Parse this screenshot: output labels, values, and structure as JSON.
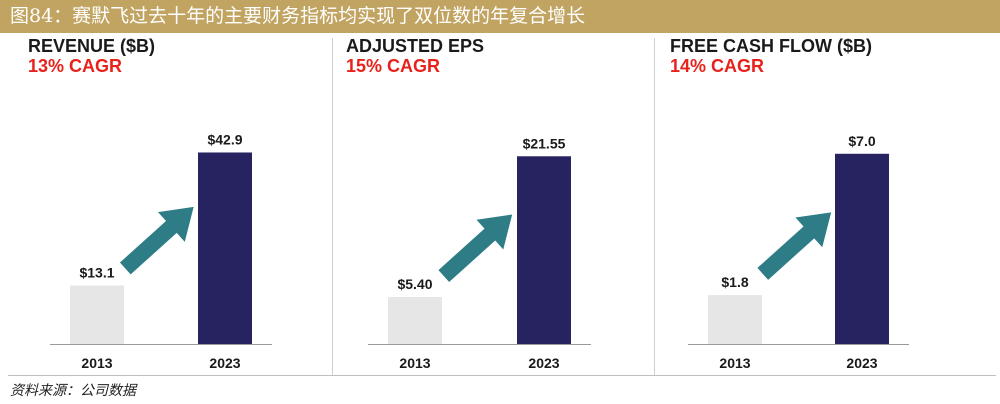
{
  "figure": {
    "title": "图84：赛默飞过去十年的主要财务指标均实现了双位数的年复合增长",
    "source": "资料来源：公司数据"
  },
  "colors": {
    "banner": "#c2a462",
    "bar_2013": "#e5e6e5",
    "bar_2023": "#272260",
    "arrow": "#2e7d86",
    "cagr": "#e8221b"
  },
  "chart_data": [
    {
      "type": "bar",
      "title": "REVENUE ($B)",
      "subtitle": "13% CAGR",
      "categories": [
        "2013",
        "2023"
      ],
      "values": [
        13.1,
        42.9
      ],
      "value_labels": [
        "$13.1",
        "$42.9"
      ],
      "ylim": [
        0,
        56
      ]
    },
    {
      "type": "bar",
      "title": "ADJUSTED EPS",
      "subtitle": "15% CAGR",
      "categories": [
        "2013",
        "2023"
      ],
      "values": [
        5.4,
        21.55
      ],
      "value_labels": [
        "$5.40",
        "$21.55"
      ],
      "ylim": [
        0,
        28.7
      ]
    },
    {
      "type": "bar",
      "title": "FREE CASH FLOW ($B)",
      "subtitle": "14% CAGR",
      "categories": [
        "2013",
        "2023"
      ],
      "values": [
        1.8,
        7.0
      ],
      "value_labels": [
        "$1.8",
        "$7.0"
      ],
      "ylim": [
        0,
        9.2
      ]
    }
  ]
}
